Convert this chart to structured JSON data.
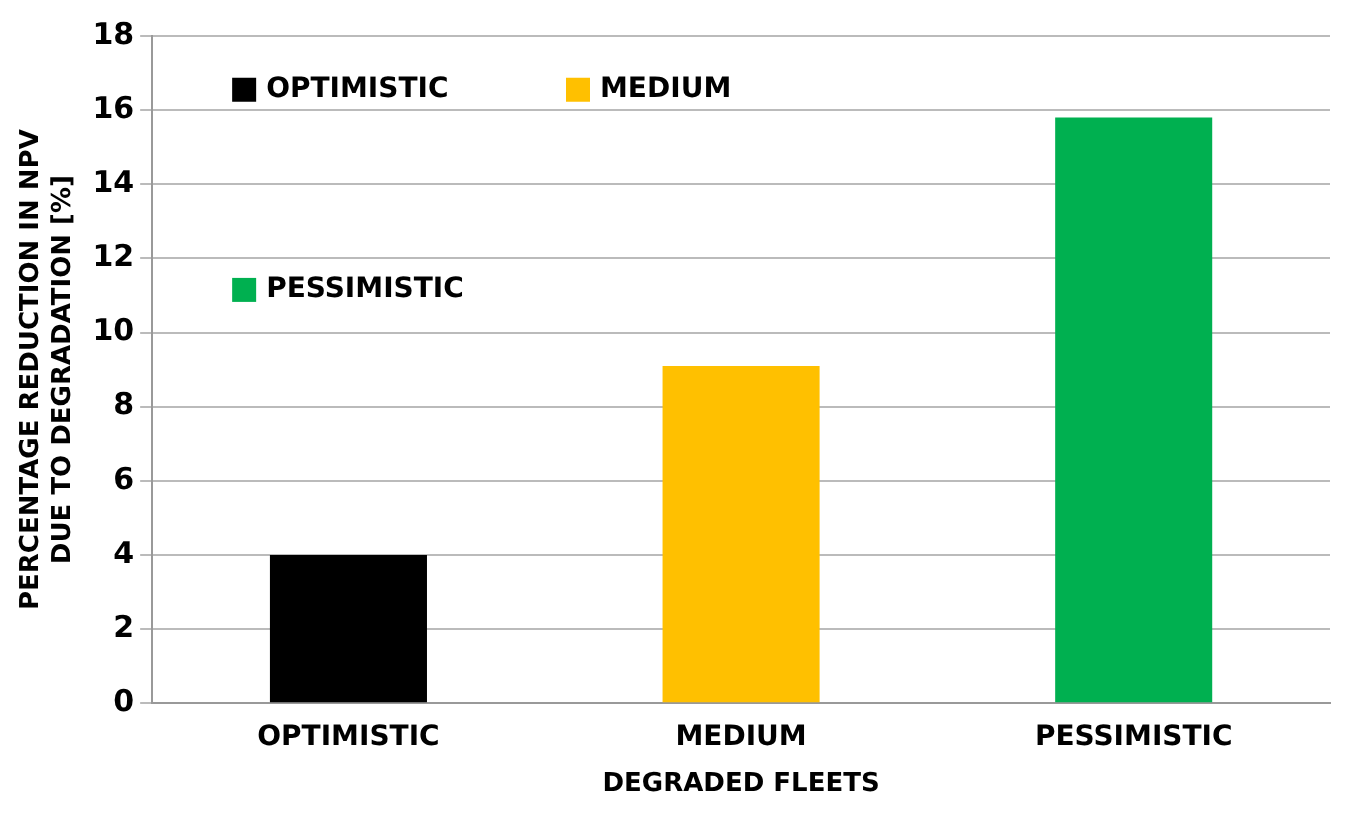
{
  "chart_data": {
    "type": "bar",
    "xlabel": "DEGRADED FLEETS",
    "ylabel": "PERCENTAGE REDUCTION IN NPV\nDUE TO DEGRADATION [%]",
    "categories": [
      "OPTIMISTIC",
      "MEDIUM",
      "PESSIMISTIC"
    ],
    "series": [
      {
        "name": "OPTIMISTIC",
        "color": "#000000",
        "values": [
          4.0,
          null,
          null
        ]
      },
      {
        "name": "MEDIUM",
        "color": "#ffc000",
        "values": [
          null,
          9.1,
          null
        ]
      },
      {
        "name": "PESSIMISTIC",
        "color": "#00b050",
        "values": [
          null,
          null,
          15.8
        ]
      }
    ],
    "ylim": [
      0,
      18
    ],
    "yticks": [
      0,
      2,
      4,
      6,
      8,
      10,
      12,
      14,
      16,
      18
    ],
    "grid": "y",
    "legend": "top left"
  }
}
